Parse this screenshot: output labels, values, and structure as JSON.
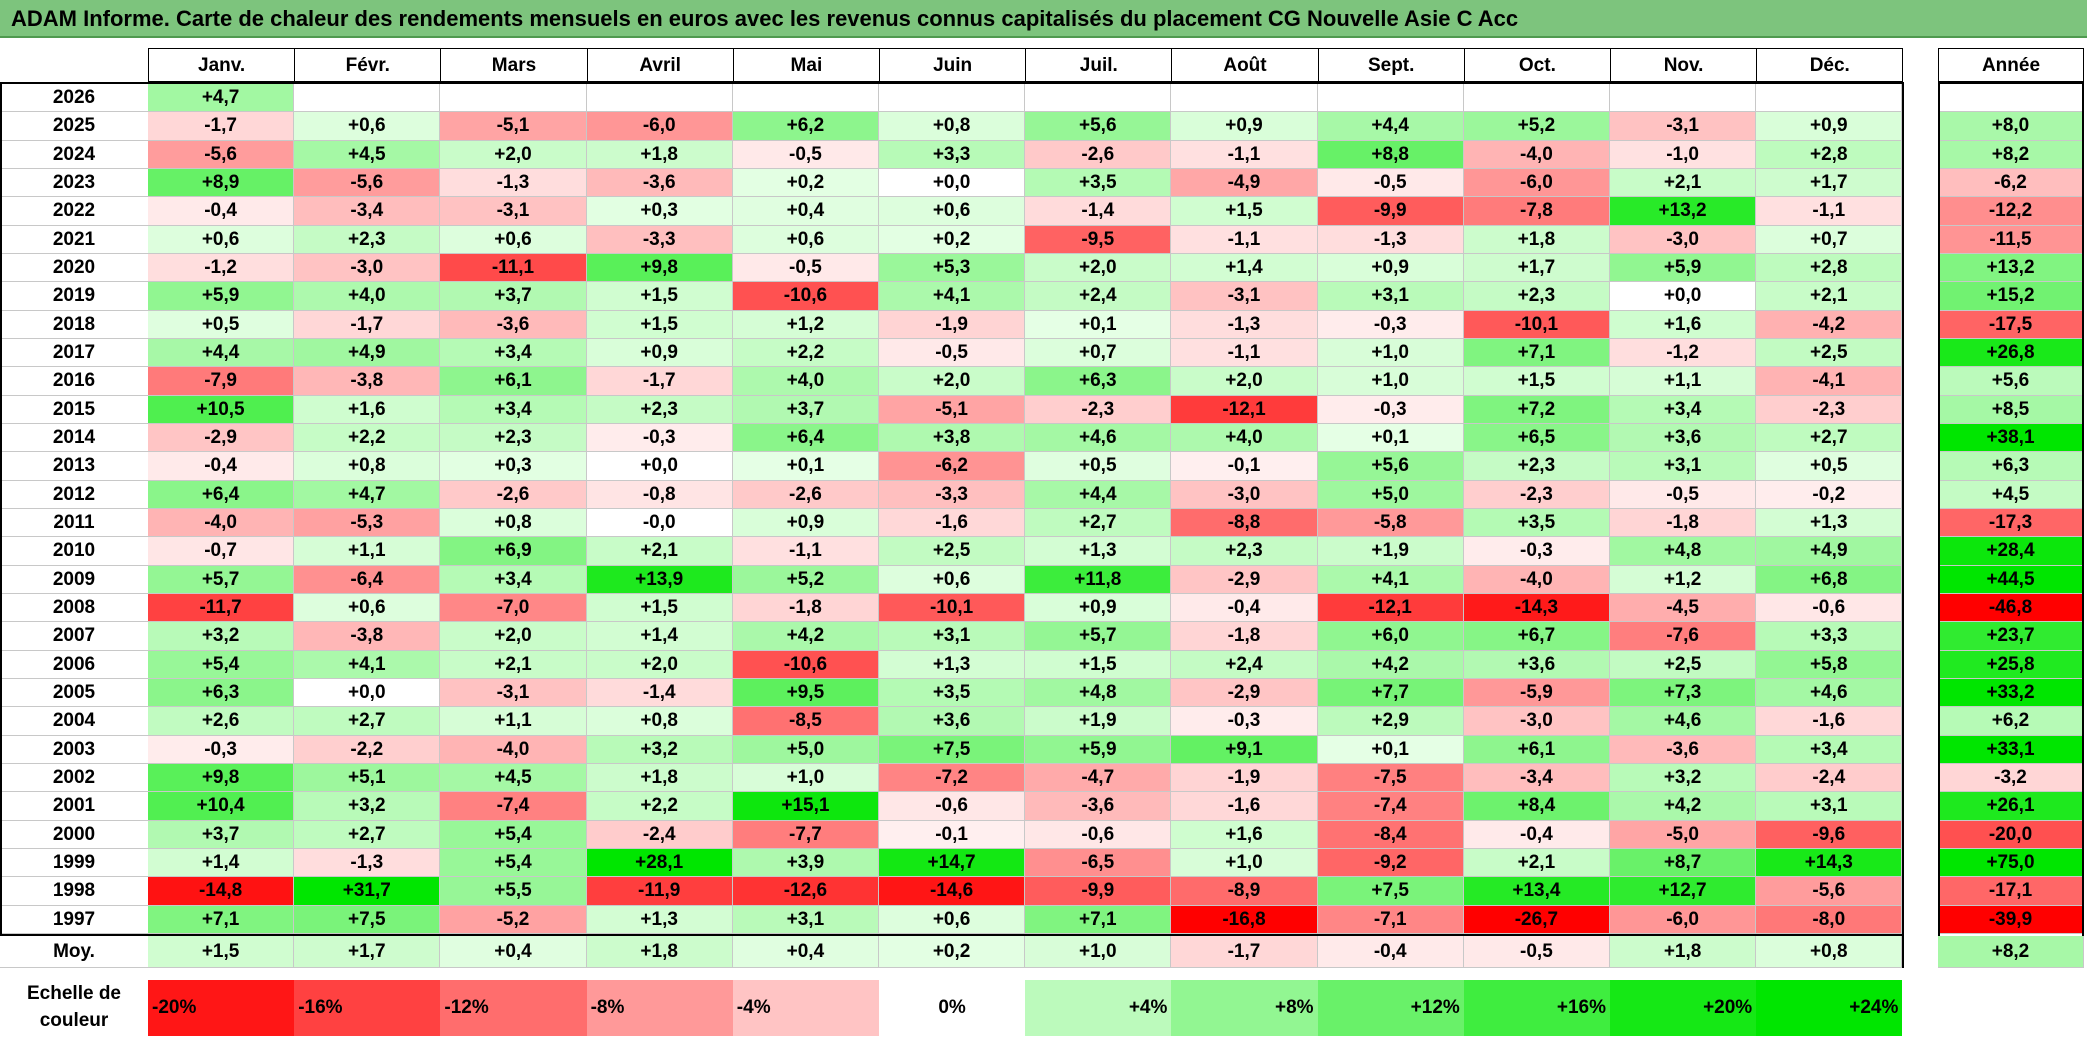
{
  "title": "ADAM Informe. Carte de chaleur des rendements mensuels en euros avec les revenus connus capitalisés du placement CG Nouvelle Asie C Acc",
  "chart_data": {
    "type": "heatmap",
    "title": "ADAM Informe. Carte de chaleur des rendements mensuels en euros avec les revenus connus capitalisés du placement CG Nouvelle Asie C Acc",
    "columns": [
      "Janv.",
      "Févr.",
      "Mars",
      "Avril",
      "Mai",
      "Juin",
      "Juil.",
      "Août",
      "Sept.",
      "Oct.",
      "Nov.",
      "Déc."
    ],
    "year_column_label": "Année",
    "rows": [
      {
        "year": "2026",
        "months": [
          "+4,7",
          "",
          "",
          "",
          "",
          "",
          "",
          "",
          "",
          "",
          "",
          ""
        ],
        "annual": ""
      },
      {
        "year": "2025",
        "months": [
          "-1,7",
          "+0,6",
          "-5,1",
          "-6,0",
          "+6,2",
          "+0,8",
          "+5,6",
          "+0,9",
          "+4,4",
          "+5,2",
          "-3,1",
          "+0,9"
        ],
        "annual": "+8,0"
      },
      {
        "year": "2024",
        "months": [
          "-5,6",
          "+4,5",
          "+2,0",
          "+1,8",
          "-0,5",
          "+3,3",
          "-2,6",
          "-1,1",
          "+8,8",
          "-4,0",
          "-1,0",
          "+2,8"
        ],
        "annual": "+8,2"
      },
      {
        "year": "2023",
        "months": [
          "+8,9",
          "-5,6",
          "-1,3",
          "-3,6",
          "+0,2",
          "+0,0",
          "+3,5",
          "-4,9",
          "-0,5",
          "-6,0",
          "+2,1",
          "+1,7"
        ],
        "annual": "-6,2"
      },
      {
        "year": "2022",
        "months": [
          "-0,4",
          "-3,4",
          "-3,1",
          "+0,3",
          "+0,4",
          "+0,6",
          "-1,4",
          "+1,5",
          "-9,9",
          "-7,8",
          "+13,2",
          "-1,1"
        ],
        "annual": "-12,2"
      },
      {
        "year": "2021",
        "months": [
          "+0,6",
          "+2,3",
          "+0,6",
          "-3,3",
          "+0,6",
          "+0,2",
          "-9,5",
          "-1,1",
          "-1,3",
          "+1,8",
          "-3,0",
          "+0,7"
        ],
        "annual": "-11,5"
      },
      {
        "year": "2020",
        "months": [
          "-1,2",
          "-3,0",
          "-11,1",
          "+9,8",
          "-0,5",
          "+5,3",
          "+2,0",
          "+1,4",
          "+0,9",
          "+1,7",
          "+5,9",
          "+2,8"
        ],
        "annual": "+13,2"
      },
      {
        "year": "2019",
        "months": [
          "+5,9",
          "+4,0",
          "+3,7",
          "+1,5",
          "-10,6",
          "+4,1",
          "+2,4",
          "-3,1",
          "+3,1",
          "+2,3",
          "+0,0",
          "+2,1"
        ],
        "annual": "+15,2"
      },
      {
        "year": "2018",
        "months": [
          "+0,5",
          "-1,7",
          "-3,6",
          "+1,5",
          "+1,2",
          "-1,9",
          "+0,1",
          "-1,3",
          "-0,3",
          "-10,1",
          "+1,6",
          "-4,2"
        ],
        "annual": "-17,5"
      },
      {
        "year": "2017",
        "months": [
          "+4,4",
          "+4,9",
          "+3,4",
          "+0,9",
          "+2,2",
          "-0,5",
          "+0,7",
          "-1,1",
          "+1,0",
          "+7,1",
          "-1,2",
          "+2,5"
        ],
        "annual": "+26,8"
      },
      {
        "year": "2016",
        "months": [
          "-7,9",
          "-3,8",
          "+6,1",
          "-1,7",
          "+4,0",
          "+2,0",
          "+6,3",
          "+2,0",
          "+1,0",
          "+1,5",
          "+1,1",
          "-4,1"
        ],
        "annual": "+5,6"
      },
      {
        "year": "2015",
        "months": [
          "+10,5",
          "+1,6",
          "+3,4",
          "+2,3",
          "+3,7",
          "-5,1",
          "-2,3",
          "-12,1",
          "-0,3",
          "+7,2",
          "+3,4",
          "-2,3"
        ],
        "annual": "+8,5"
      },
      {
        "year": "2014",
        "months": [
          "-2,9",
          "+2,2",
          "+2,3",
          "-0,3",
          "+6,4",
          "+3,8",
          "+4,6",
          "+4,0",
          "+0,1",
          "+6,5",
          "+3,6",
          "+2,7"
        ],
        "annual": "+38,1"
      },
      {
        "year": "2013",
        "months": [
          "-0,4",
          "+0,8",
          "+0,3",
          "+0,0",
          "+0,1",
          "-6,2",
          "+0,5",
          "-0,1",
          "+5,6",
          "+2,3",
          "+3,1",
          "+0,5"
        ],
        "annual": "+6,3"
      },
      {
        "year": "2012",
        "months": [
          "+6,4",
          "+4,7",
          "-2,6",
          "-0,8",
          "-2,6",
          "-3,3",
          "+4,4",
          "-3,0",
          "+5,0",
          "-2,3",
          "-0,5",
          "-0,2"
        ],
        "annual": "+4,5"
      },
      {
        "year": "2011",
        "months": [
          "-4,0",
          "-5,3",
          "+0,8",
          "-0,0",
          "+0,9",
          "-1,6",
          "+2,7",
          "-8,8",
          "-5,8",
          "+3,5",
          "-1,8",
          "+1,3"
        ],
        "annual": "-17,3"
      },
      {
        "year": "2010",
        "months": [
          "-0,7",
          "+1,1",
          "+6,9",
          "+2,1",
          "-1,1",
          "+2,5",
          "+1,3",
          "+2,3",
          "+1,9",
          "-0,3",
          "+4,8",
          "+4,9"
        ],
        "annual": "+28,4"
      },
      {
        "year": "2009",
        "months": [
          "+5,7",
          "-6,4",
          "+3,4",
          "+13,9",
          "+5,2",
          "+0,6",
          "+11,8",
          "-2,9",
          "+4,1",
          "-4,0",
          "+1,2",
          "+6,8"
        ],
        "annual": "+44,5"
      },
      {
        "year": "2008",
        "months": [
          "-11,7",
          "+0,6",
          "-7,0",
          "+1,5",
          "-1,8",
          "-10,1",
          "+0,9",
          "-0,4",
          "-12,1",
          "-14,3",
          "-4,5",
          "-0,6"
        ],
        "annual": "-46,8"
      },
      {
        "year": "2007",
        "months": [
          "+3,2",
          "-3,8",
          "+2,0",
          "+1,4",
          "+4,2",
          "+3,1",
          "+5,7",
          "-1,8",
          "+6,0",
          "+6,7",
          "-7,6",
          "+3,3"
        ],
        "annual": "+23,7"
      },
      {
        "year": "2006",
        "months": [
          "+5,4",
          "+4,1",
          "+2,1",
          "+2,0",
          "-10,6",
          "+1,3",
          "+1,5",
          "+2,4",
          "+4,2",
          "+3,6",
          "+2,5",
          "+5,8"
        ],
        "annual": "+25,8"
      },
      {
        "year": "2005",
        "months": [
          "+6,3",
          "+0,0",
          "-3,1",
          "-1,4",
          "+9,5",
          "+3,5",
          "+4,8",
          "-2,9",
          "+7,7",
          "-5,9",
          "+7,3",
          "+4,6"
        ],
        "annual": "+33,2"
      },
      {
        "year": "2004",
        "months": [
          "+2,6",
          "+2,7",
          "+1,1",
          "+0,8",
          "-8,5",
          "+3,6",
          "+1,9",
          "-0,3",
          "+2,9",
          "-3,0",
          "+4,6",
          "-1,6"
        ],
        "annual": "+6,2"
      },
      {
        "year": "2003",
        "months": [
          "-0,3",
          "-2,2",
          "-4,0",
          "+3,2",
          "+5,0",
          "+7,5",
          "+5,9",
          "+9,1",
          "+0,1",
          "+6,1",
          "-3,6",
          "+3,4"
        ],
        "annual": "+33,1"
      },
      {
        "year": "2002",
        "months": [
          "+9,8",
          "+5,1",
          "+4,5",
          "+1,8",
          "+1,0",
          "-7,2",
          "-4,7",
          "-1,9",
          "-7,5",
          "-3,4",
          "+3,2",
          "-2,4"
        ],
        "annual": "-3,2"
      },
      {
        "year": "2001",
        "months": [
          "+10,4",
          "+3,2",
          "-7,4",
          "+2,2",
          "+15,1",
          "-0,6",
          "-3,6",
          "-1,6",
          "-7,4",
          "+8,4",
          "+4,2",
          "+3,1"
        ],
        "annual": "+26,1"
      },
      {
        "year": "2000",
        "months": [
          "+3,7",
          "+2,7",
          "+5,4",
          "-2,4",
          "-7,7",
          "-0,1",
          "-0,6",
          "+1,6",
          "-8,4",
          "-0,4",
          "-5,0",
          "-9,6"
        ],
        "annual": "-20,0"
      },
      {
        "year": "1999",
        "months": [
          "+1,4",
          "-1,3",
          "+5,4",
          "+28,1",
          "+3,9",
          "+14,7",
          "-6,5",
          "+1,0",
          "-9,2",
          "+2,1",
          "+8,7",
          "+14,3"
        ],
        "annual": "+75,0"
      },
      {
        "year": "1998",
        "months": [
          "-14,8",
          "+31,7",
          "+5,5",
          "-11,9",
          "-12,6",
          "-14,6",
          "-9,9",
          "-8,9",
          "+7,5",
          "+13,4",
          "+12,7",
          "-5,6"
        ],
        "annual": "-17,1"
      },
      {
        "year": "1997",
        "months": [
          "+7,1",
          "+7,5",
          "-5,2",
          "+1,3",
          "+3,1",
          "+0,6",
          "+7,1",
          "-16,8",
          "-7,1",
          "-26,7",
          "-6,0",
          "-8,0"
        ],
        "annual": "-39,9"
      }
    ],
    "average": {
      "label": "Moy.",
      "months": [
        "+1,5",
        "+1,7",
        "+0,4",
        "+1,8",
        "+0,4",
        "+0,2",
        "+1,0",
        "-1,7",
        "-0,4",
        "-0,5",
        "+1,8",
        "+0,8"
      ],
      "annual": "+8,2"
    },
    "scale": {
      "label_line1": "Echelle de",
      "label_line2": "couleur",
      "steps": [
        {
          "label": "-20%",
          "value": -20
        },
        {
          "label": "-16%",
          "value": -16
        },
        {
          "label": "-12%",
          "value": -12
        },
        {
          "label": "-8%",
          "value": -8
        },
        {
          "label": "-4%",
          "value": -4
        },
        {
          "label": "0%",
          "value": 0
        },
        {
          "label": "+4%",
          "value": 4
        },
        {
          "label": "+8%",
          "value": 8
        },
        {
          "label": "+12%",
          "value": 12
        },
        {
          "label": "+16%",
          "value": 16
        },
        {
          "label": "+20%",
          "value": 20
        },
        {
          "label": "+24%",
          "value": 24
        }
      ]
    },
    "colors": {
      "negative": "#ff0000",
      "neutral": "#ffffff",
      "positive": "#00e600",
      "title_bg": "#7dc47d"
    }
  }
}
